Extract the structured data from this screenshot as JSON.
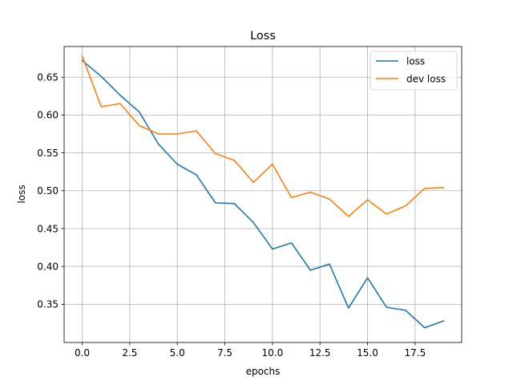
{
  "chart_data": {
    "type": "line",
    "title": "Loss",
    "xlabel": "epochs",
    "ylabel": "loss",
    "xlim": [
      -0.95,
      19.95
    ],
    "ylim": [
      0.2995,
      0.6905
    ],
    "xticks": [
      0,
      2.5,
      5,
      7.5,
      10,
      12.5,
      15,
      17.5
    ],
    "xtick_labels": [
      "0.0",
      "2.5",
      "5.0",
      "7.5",
      "10.0",
      "12.5",
      "15.0",
      "17.5"
    ],
    "yticks": [
      0.35,
      0.4,
      0.45,
      0.5,
      0.55,
      0.6,
      0.65
    ],
    "ytick_labels": [
      "0.35",
      "0.40",
      "0.45",
      "0.50",
      "0.55",
      "0.60",
      "0.65"
    ],
    "grid": true,
    "legend_position": "top-right",
    "x": [
      0,
      1,
      2,
      3,
      4,
      5,
      6,
      7,
      8,
      9,
      10,
      11,
      12,
      13,
      14,
      15,
      16,
      17,
      18,
      19
    ],
    "series": [
      {
        "name": "loss",
        "color": "#1f77b4",
        "values": [
          0.672,
          0.651,
          0.626,
          0.604,
          0.562,
          0.535,
          0.521,
          0.484,
          0.483,
          0.458,
          0.423,
          0.431,
          0.395,
          0.403,
          0.345,
          0.385,
          0.346,
          0.342,
          0.319,
          0.328
        ]
      },
      {
        "name": "dev loss",
        "color": "#ff7f0e",
        "values": [
          0.678,
          0.611,
          0.615,
          0.586,
          0.575,
          0.575,
          0.579,
          0.549,
          0.54,
          0.511,
          0.535,
          0.491,
          0.498,
          0.489,
          0.466,
          0.488,
          0.469,
          0.48,
          0.503,
          0.504
        ]
      }
    ]
  }
}
